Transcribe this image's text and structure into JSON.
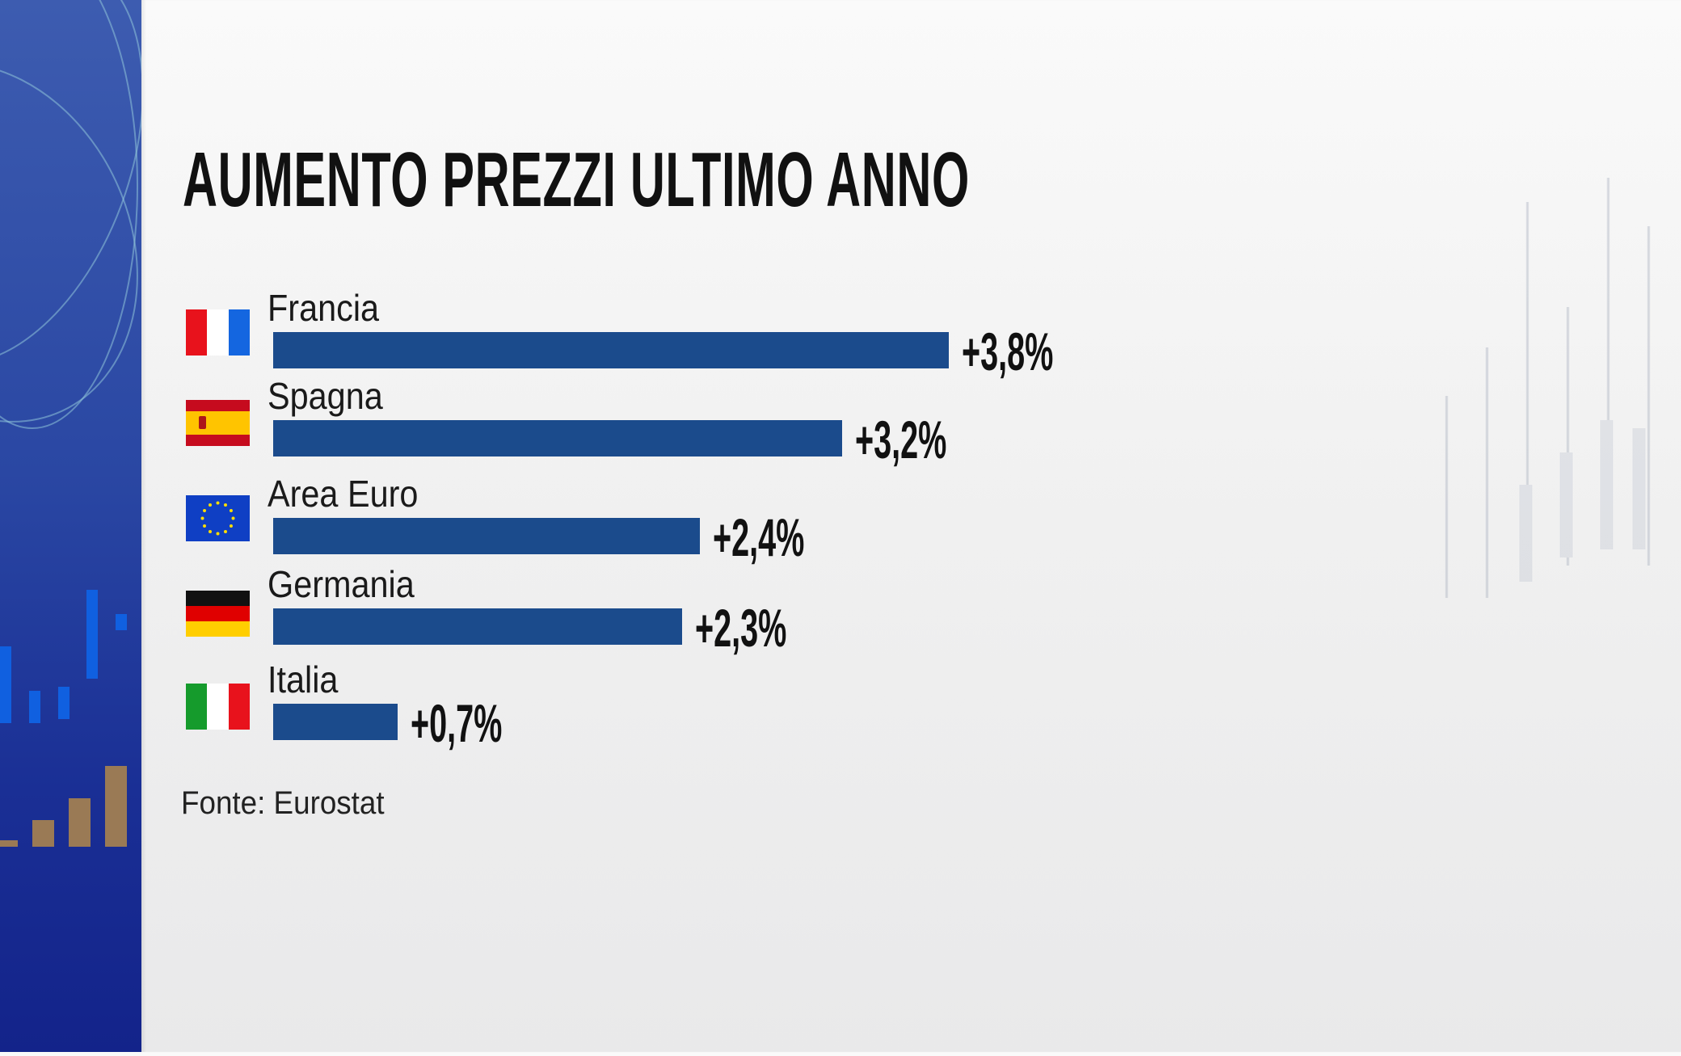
{
  "chart_data": {
    "type": "bar",
    "orientation": "horizontal",
    "title": "AUMENTO PREZZI ULTIMO ANNO",
    "categories": [
      "Francia",
      "Spagna",
      "Area Euro",
      "Germania",
      "Italia"
    ],
    "values": [
      3.8,
      3.2,
      2.4,
      2.3,
      0.7
    ],
    "value_labels": [
      "+3,8%",
      "+3,2%",
      "+2,4%",
      "+2,3%",
      "+0,7%"
    ],
    "flags": [
      "france-flag",
      "spain-flag",
      "eu-flag",
      "germany-flag",
      "italy-flag"
    ],
    "bar_color": "#1b4b8c",
    "grid": false,
    "source": "Fonte: Eurostat"
  }
}
